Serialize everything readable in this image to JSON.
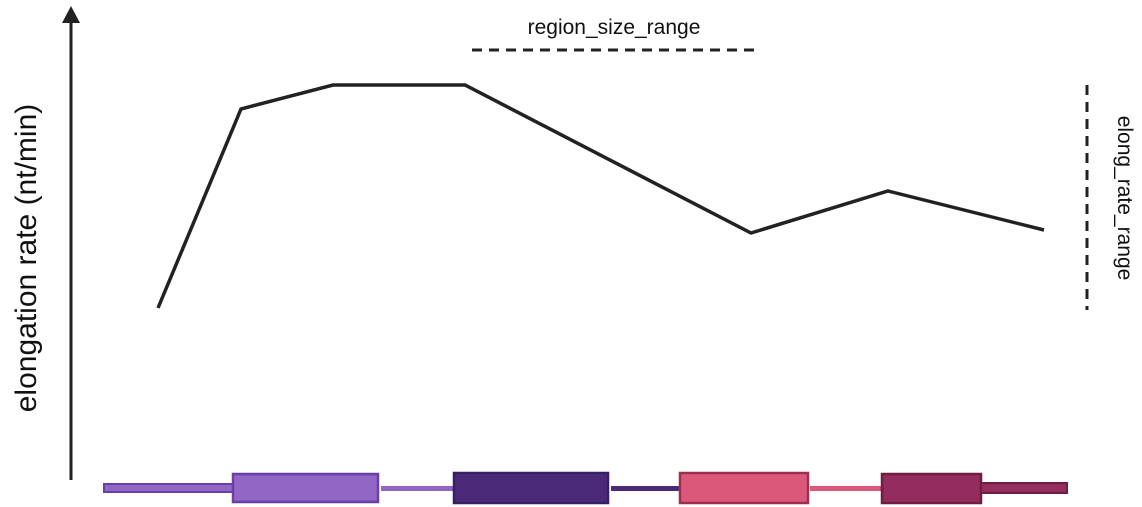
{
  "y_axis_label": "elongation rate (nt/min)",
  "region_size_label": "region_size_range",
  "elong_rate_label": "elong_rate_range",
  "colors": {
    "line": "#222222",
    "axis": "#222222",
    "purple_light": "#9166c4",
    "purple_light_stroke": "#6a3fa8",
    "purple_dark": "#4a2a78",
    "purple_dark_stroke": "#3a1e63",
    "pink": "#db587a",
    "pink_stroke": "#9c2f4e",
    "maroon": "#952c5e",
    "maroon_stroke": "#6e1d43"
  }
}
